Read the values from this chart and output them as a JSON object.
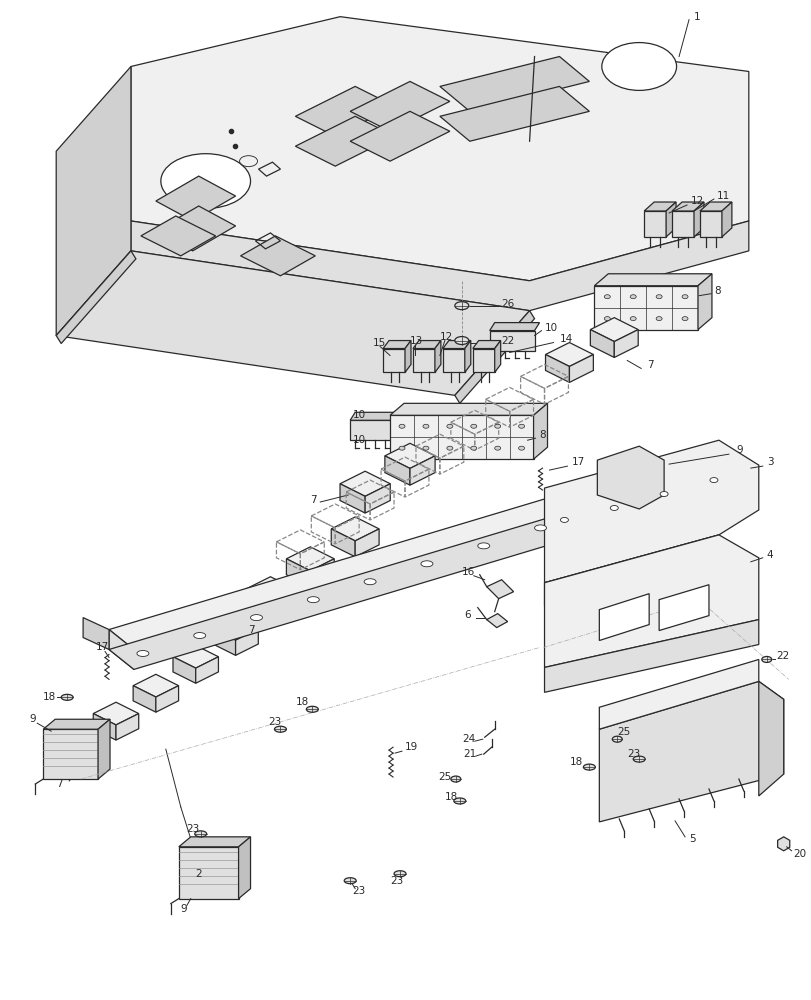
{
  "bg_color": "#ffffff",
  "lc": "#2a2a2a",
  "lw": 0.9,
  "fw": 8.12,
  "fh": 10.0,
  "fs": 7.5
}
